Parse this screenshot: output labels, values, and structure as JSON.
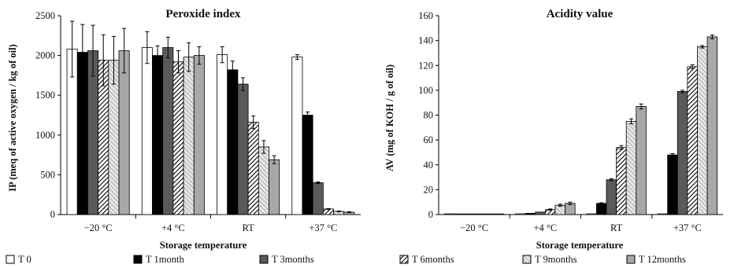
{
  "legend": [
    {
      "label": "T 0",
      "fill": "#ffffff",
      "pattern": "solid"
    },
    {
      "label": "T 1month",
      "fill": "#000000",
      "pattern": "solid"
    },
    {
      "label": "T 3months",
      "fill": "#5a5a5a",
      "pattern": "solid"
    },
    {
      "label": "T 6months",
      "fill": "#ffffff",
      "pattern": "hatch"
    },
    {
      "label": "T 9months",
      "fill": "#e0e0e0",
      "pattern": "hatch-light"
    },
    {
      "label": "T 12months",
      "fill": "#a8a8a8",
      "pattern": "solid"
    }
  ],
  "chart_data": [
    {
      "type": "bar",
      "title": "Peroxide index",
      "xlabel": "Storage temperature",
      "ylabel": "IP (meq of active oxygen / kg of oil)",
      "categories": [
        "−20 °C",
        "+4 °C",
        "RT",
        "+37 °C"
      ],
      "ylim": [
        0,
        2500
      ],
      "yticks": [
        0,
        500,
        1000,
        1500,
        2000,
        2500
      ],
      "series": [
        {
          "name": "T 0",
          "values": [
            2080,
            2100,
            2010,
            1980
          ],
          "errors": [
            350,
            200,
            100,
            30
          ]
        },
        {
          "name": "T 1month",
          "values": [
            2040,
            2000,
            1820,
            1250
          ],
          "errors": [
            350,
            120,
            110,
            40
          ]
        },
        {
          "name": "T 3months",
          "values": [
            2060,
            2100,
            1640,
            400
          ],
          "errors": [
            320,
            130,
            80,
            10
          ]
        },
        {
          "name": "T 6months",
          "values": [
            1940,
            1920,
            1160,
            70
          ],
          "errors": [
            320,
            140,
            80,
            5
          ]
        },
        {
          "name": "T 9months",
          "values": [
            1940,
            1980,
            850,
            40
          ],
          "errors": [
            300,
            180,
            80,
            5
          ]
        },
        {
          "name": "T 12months",
          "values": [
            2060,
            2000,
            690,
            30
          ],
          "errors": [
            280,
            110,
            50,
            5
          ]
        }
      ]
    },
    {
      "type": "bar",
      "title": "Acidity value",
      "xlabel": "Storage temperature",
      "ylabel": "AV (mg of KOH / g of oil)",
      "categories": [
        "−20 °C",
        "+4 °C",
        "RT",
        "+37 °C"
      ],
      "ylim": [
        0,
        160
      ],
      "yticks": [
        0,
        20,
        40,
        60,
        80,
        100,
        120,
        140,
        160
      ],
      "series": [
        {
          "name": "T 0",
          "values": [
            0.6,
            0.6,
            0.6,
            0.6
          ],
          "errors": [
            0,
            0,
            0,
            0
          ]
        },
        {
          "name": "T 1month",
          "values": [
            0.5,
            1.0,
            9,
            48
          ],
          "errors": [
            0,
            0,
            0.5,
            1
          ]
        },
        {
          "name": "T 3months",
          "values": [
            0.5,
            2.0,
            28,
            99
          ],
          "errors": [
            0,
            0,
            0.8,
            1
          ]
        },
        {
          "name": "T 6months",
          "values": [
            0.5,
            4.0,
            54,
            119
          ],
          "errors": [
            0,
            0.5,
            1.5,
            1.5
          ]
        },
        {
          "name": "T 9months",
          "values": [
            0.5,
            7.5,
            75,
            135
          ],
          "errors": [
            0,
            0.8,
            2,
            1
          ]
        },
        {
          "name": "T 12months",
          "values": [
            0.5,
            9.0,
            87,
            143
          ],
          "errors": [
            0,
            1,
            2,
            1.5
          ]
        }
      ]
    }
  ]
}
